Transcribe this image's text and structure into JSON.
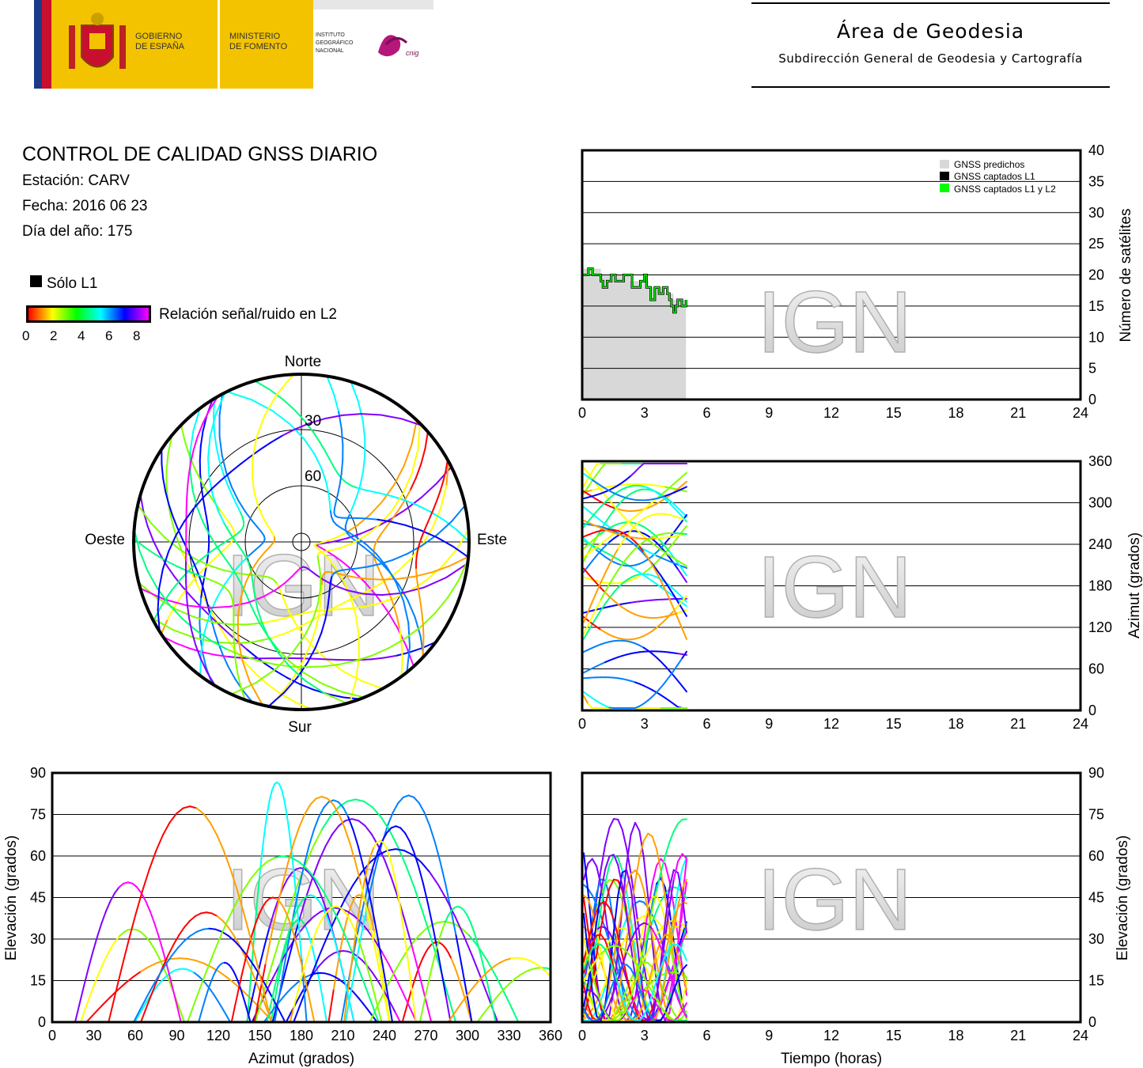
{
  "header": {
    "logo_gov_line1": "GOBIERNO",
    "logo_gov_line2": "DE ESPAÑA",
    "logo_min_line1": "MINISTERIO",
    "logo_min_line2": "DE FOMENTO",
    "logo_ign_line1": "INSTITUTO",
    "logo_ign_line2": "GEOGRÁFICO",
    "logo_ign_line3": "NACIONAL",
    "logo_cnig": "cnig",
    "area_title": "Área de Geodesia",
    "area_subtitle": "Subdirección General de Geodesia y Cartografía"
  },
  "report": {
    "title": "CONTROL DE CALIDAD GNSS DIARIO",
    "station": "Estación: CARV",
    "date": "Fecha: 2016 06 23",
    "doy": "Día del año: 175",
    "legend_l1": "Sólo L1",
    "legend_snr": "Relación señal/ruido en L2",
    "snr_ticks": [
      "0",
      "2",
      "4",
      "6",
      "8"
    ]
  },
  "watermark": "IGN",
  "colors": {
    "predicted": "#d8d8d8",
    "l1": "#000000",
    "l1l2": "#00ff00",
    "snr_scale": [
      "#ff0000",
      "#ffa000",
      "#ffff00",
      "#80ff00",
      "#00ff80",
      "#00ffff",
      "#0080ff",
      "#0000ff",
      "#8000ff",
      "#ff00ff"
    ]
  },
  "chart_data": [
    {
      "id": "satellites",
      "type": "area",
      "ylabel": "Número de satélites",
      "x_ticks": [
        "0",
        "3",
        "6",
        "9",
        "12",
        "15",
        "18",
        "21",
        "24"
      ],
      "y_ticks": [
        "0",
        "5",
        "10",
        "15",
        "20",
        "25",
        "30",
        "35",
        "40"
      ],
      "xlim": [
        0,
        24
      ],
      "ylim": [
        0,
        40
      ],
      "legend": [
        "GNSS predichos",
        "GNSS captados L1",
        "GNSS captados L1 y L2"
      ],
      "legend_position": "top-right",
      "predicted": {
        "x": [
          0,
          0.5,
          0.9,
          1.3,
          1.8,
          2.3,
          2.8,
          3.2,
          3.6,
          4.0,
          4.4,
          4.7,
          5.0
        ],
        "y": [
          21,
          21,
          20,
          20,
          20,
          19,
          19,
          18,
          18,
          17,
          16,
          16,
          16
        ]
      },
      "l1l2": {
        "x": [
          0,
          0.3,
          0.5,
          0.7,
          0.9,
          1.0,
          1.2,
          1.4,
          1.6,
          1.8,
          2.0,
          2.4,
          2.6,
          2.8,
          3.0,
          3.1,
          3.3,
          3.5,
          3.7,
          3.9,
          4.1,
          4.2,
          4.3,
          4.4,
          4.5,
          4.6,
          4.8,
          5.0
        ],
        "y": [
          20,
          21,
          20,
          20,
          19,
          18,
          19,
          20,
          19,
          19,
          20,
          18,
          18,
          19,
          20,
          18,
          16,
          18,
          17,
          18,
          17,
          16,
          15,
          14,
          15,
          16,
          15,
          16
        ]
      }
    },
    {
      "id": "skyplot",
      "type": "scatter",
      "labels": {
        "north": "Norte",
        "south": "Sur",
        "east": "Este",
        "west": "Oeste"
      },
      "elevation_rings": [
        "30",
        "60"
      ]
    },
    {
      "id": "azimuth_time",
      "type": "scatter",
      "ylabel": "Azimut (grados)",
      "x_ticks": [
        "0",
        "3",
        "6",
        "9",
        "12",
        "15",
        "18",
        "21",
        "24"
      ],
      "y_ticks": [
        "0",
        "60",
        "120",
        "180",
        "240",
        "300",
        "360"
      ],
      "xlim": [
        0,
        24
      ],
      "ylim": [
        0,
        360
      ]
    },
    {
      "id": "elevation_azimuth",
      "type": "scatter",
      "xlabel": "Azimut (grados)",
      "ylabel": "Elevación (grados)",
      "x_ticks": [
        "0",
        "30",
        "60",
        "90",
        "120",
        "150",
        "180",
        "210",
        "240",
        "270",
        "300",
        "330",
        "360"
      ],
      "y_ticks": [
        "0",
        "15",
        "30",
        "45",
        "60",
        "75",
        "90"
      ],
      "xlim": [
        0,
        360
      ],
      "ylim": [
        0,
        90
      ]
    },
    {
      "id": "elevation_time",
      "type": "scatter",
      "xlabel": "Tiempo (horas)",
      "ylabel": "Elevación (grados)",
      "x_ticks": [
        "0",
        "3",
        "6",
        "9",
        "12",
        "15",
        "18",
        "21",
        "24"
      ],
      "y_ticks": [
        "0",
        "15",
        "30",
        "45",
        "60",
        "75",
        "90"
      ],
      "xlim": [
        0,
        24
      ],
      "ylim": [
        0,
        90
      ]
    }
  ]
}
